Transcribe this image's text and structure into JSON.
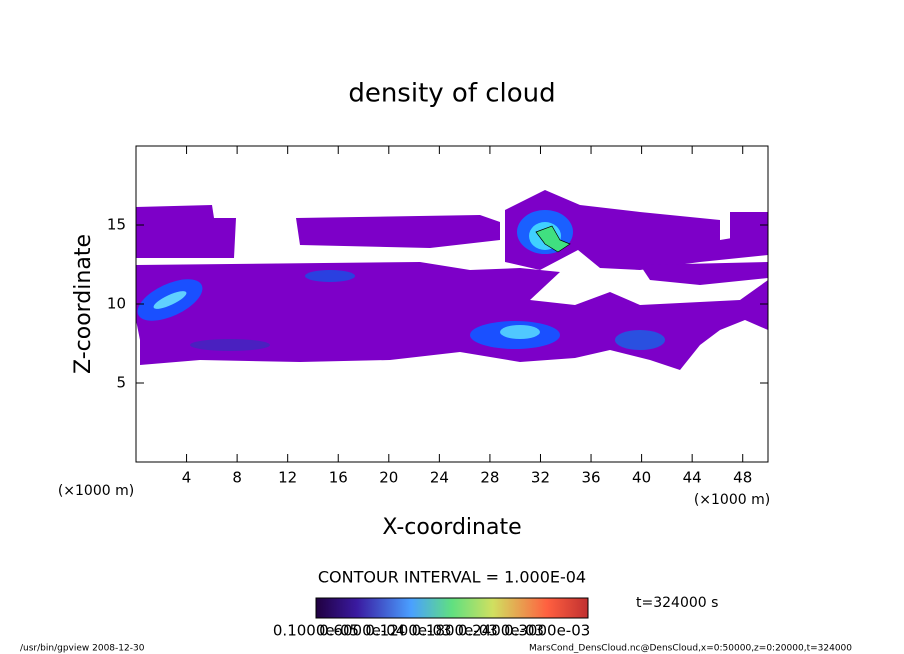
{
  "chart_data": {
    "type": "contour",
    "title": "density of cloud",
    "x_label": "X-coordinate",
    "y_label": "Z-coordinate",
    "x_unit": "(×1000 m)",
    "y_unit": "(×1000 m)",
    "xlim": [
      0,
      50
    ],
    "xticks": [
      4,
      8,
      12,
      16,
      20,
      24,
      28,
      32,
      36,
      40,
      44,
      48
    ],
    "ylim": [
      0,
      20
    ],
    "yticks": [
      5,
      10,
      15
    ],
    "contour_interval": "CONTOUR INTERVAL = 1.000E-04",
    "time": "t=324000 s",
    "colorbar_labels": [
      "0.1000e-05",
      "0.6000e-04",
      "0.1200e-03",
      "0.1800e-03",
      "0.2400e-03",
      "0.3000e-03"
    ],
    "footer_left": "/usr/bin/gpview   2008-12-30",
    "footer_right": "MarsCond_DensCloud.nc@DensCloud,x=0:50000,z=0:20000,t=324000"
  }
}
